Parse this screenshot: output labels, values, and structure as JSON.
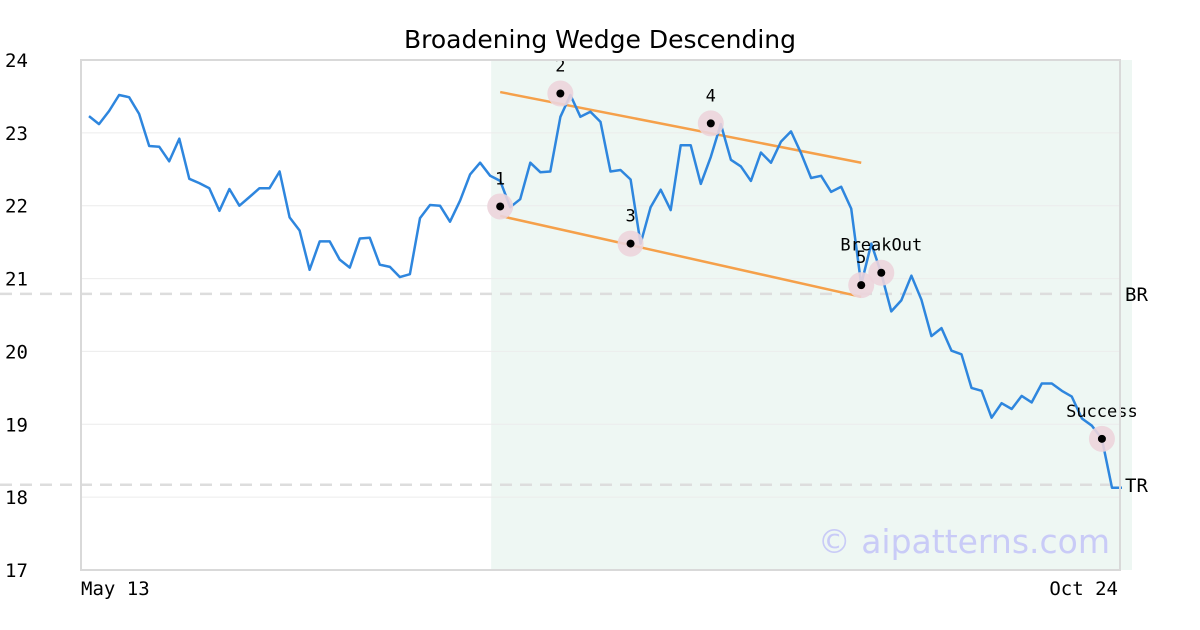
{
  "chart_data": {
    "type": "line",
    "title": "Broadening Wedge Descending",
    "x_start_label": "May 13",
    "x_end_label": "Oct 24",
    "ylim": [
      17,
      24
    ],
    "yticks": [
      17,
      18,
      19,
      20,
      21,
      22,
      23,
      24
    ],
    "grid": "horizontal",
    "watermark": "© aipatterns.com",
    "colors": {
      "price": "#2e86de",
      "trendline": "#f5a04a",
      "pattern_region": "#eef7f3",
      "level_line": "#dddddd",
      "marker_halo": "#ecd4dc",
      "marker_dot": "#000000"
    },
    "series": [
      {
        "values": [
          23.23,
          23.12,
          23.3,
          23.52,
          23.49,
          23.26,
          22.82,
          22.81,
          22.61,
          22.92,
          22.37,
          22.31,
          22.24,
          21.93,
          22.23,
          22,
          22.12,
          22.24,
          22.24,
          22.47,
          21.84,
          21.66,
          21.12,
          21.51,
          21.51,
          21.26,
          21.15,
          21.55,
          21.56,
          21.19,
          21.16,
          21.02,
          21.06,
          21.83,
          22.01,
          22,
          21.78,
          22.07,
          22.43,
          22.59,
          22.41,
          22.34,
          21.98,
          22.09,
          22.59,
          22.46,
          22.47,
          23.22,
          23.52,
          23.22,
          23.29,
          23.15,
          22.47,
          22.49,
          22.36,
          21.48,
          21.98,
          22.22,
          21.94,
          22.83,
          22.83,
          22.3,
          22.67,
          23.12,
          22.63,
          22.54,
          22.34,
          22.73,
          22.59,
          22.88,
          23.02,
          22.72,
          22.38,
          22.41,
          22.19,
          22.26,
          21.96,
          20.92,
          21.48,
          21.07,
          20.55,
          20.7,
          21.04,
          20.71,
          20.21,
          20.32,
          20.01,
          19.96,
          19.5,
          19.46,
          19.09,
          19.29,
          19.21,
          19.39,
          19.3,
          19.56,
          19.56,
          19.46,
          19.38,
          19.08,
          18.98,
          18.8,
          18.13,
          18.13
        ]
      }
    ],
    "shaded_region": {
      "from_index": 40,
      "to_index": 103
    },
    "levels": [
      {
        "label": "BR",
        "value": 20.79
      },
      {
        "label": "TR",
        "value": 18.17
      }
    ],
    "trendlines": [
      {
        "from": [
          41,
          23.56
        ],
        "to": [
          77,
          22.59
        ]
      },
      {
        "from": [
          41,
          21.86
        ],
        "to": [
          77,
          20.75
        ]
      }
    ],
    "markers": [
      {
        "label": "1",
        "index": 41,
        "value": 21.99
      },
      {
        "label": "2",
        "index": 47,
        "value": 23.54
      },
      {
        "label": "3",
        "index": 54,
        "value": 21.48
      },
      {
        "label": "4",
        "index": 62,
        "value": 23.13
      },
      {
        "label": "5",
        "index": 77,
        "value": 20.91
      },
      {
        "label": "BreakOut",
        "index": 79,
        "value": 21.08
      },
      {
        "label": "Success",
        "index": 101,
        "value": 18.8
      }
    ]
  }
}
